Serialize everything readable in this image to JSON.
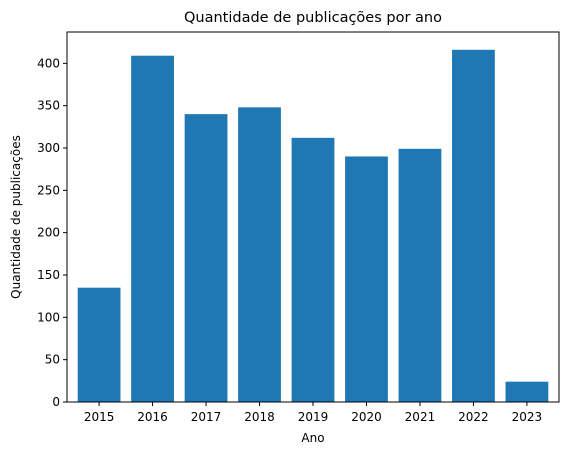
{
  "chart_data": {
    "type": "bar",
    "title": "Quantidade de publicações por ano",
    "xlabel": "Ano",
    "ylabel": "Quantidade de publicações",
    "categories": [
      "2015",
      "2016",
      "2017",
      "2018",
      "2019",
      "2020",
      "2021",
      "2022",
      "2023"
    ],
    "values": [
      135,
      409,
      340,
      348,
      312,
      290,
      299,
      416,
      24
    ],
    "ylim": [
      0,
      437
    ],
    "yticks": [
      0,
      50,
      100,
      150,
      200,
      250,
      300,
      350,
      400
    ],
    "bar_color": "#1f77b4",
    "grid": false,
    "legend": "none"
  }
}
